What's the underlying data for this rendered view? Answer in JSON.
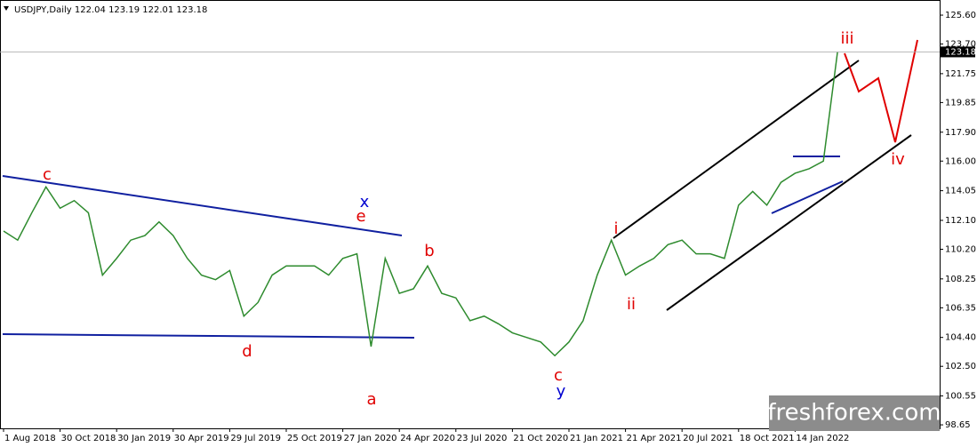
{
  "chart_data": {
    "type": "line",
    "subtitle": "USDJPY,Daily  122.04 123.19 122.01 123.18",
    "categories": [
      "1 Aug 2018",
      null,
      null,
      null,
      "30 Oct 2018",
      null,
      null,
      null,
      "30 Jan 2019",
      null,
      null,
      null,
      "30 Apr 2019",
      null,
      null,
      null,
      "29 Jul 2019",
      null,
      null,
      null,
      "25 Oct 2019",
      null,
      null,
      null,
      "27 Jan 2020",
      null,
      null,
      null,
      "24 Apr 2020",
      null,
      null,
      null,
      "23 Jul 2020",
      null,
      null,
      null,
      "21 Oct 2020",
      null,
      null,
      null,
      "21 Jan 2021",
      null,
      null,
      null,
      "21 Apr 2021",
      null,
      null,
      null,
      "20 Jul 2021",
      null,
      null,
      null,
      "18 Oct 2021",
      null,
      null,
      null,
      "14 Jan 2022",
      null,
      null,
      null
    ],
    "series": [
      {
        "name": "USDJPY",
        "color": "#2e8b2e",
        "values": [
          111.4,
          110.8,
          112.6,
          114.3,
          112.9,
          113.4,
          112.6,
          108.5,
          109.6,
          110.8,
          111.1,
          112.0,
          111.1,
          109.6,
          108.5,
          108.2,
          108.8,
          105.8,
          106.7,
          108.5,
          109.1,
          109.1,
          109.1,
          108.5,
          109.6,
          109.9,
          103.8,
          109.6,
          107.3,
          107.6,
          109.1,
          107.3,
          107.0,
          105.5,
          105.8,
          105.3,
          104.7,
          104.4,
          104.1,
          103.2,
          104.1,
          105.5,
          108.5,
          110.8,
          108.5,
          109.1,
          109.6,
          110.5,
          110.8,
          109.9,
          109.9,
          109.6,
          113.1,
          114.0,
          113.1,
          114.6,
          115.2,
          115.5,
          116.0,
          123.18
        ]
      }
    ],
    "current_price": {
      "value": 123.18,
      "label": "123.18"
    },
    "ylim": [
      98.42,
      126.42
    ],
    "yticks": [
      {
        "value": 125.6,
        "label": "125.60"
      },
      {
        "value": 123.7,
        "label": "123.70"
      },
      121.75,
      119.85,
      {
        "value": 117.9,
        "label": "117.90"
      },
      {
        "value": 116,
        "label": "116.00"
      },
      114.05,
      {
        "value": 112.1,
        "label": "112.10"
      },
      {
        "value": 110.2,
        "label": "110.20"
      },
      108.25,
      106.35,
      {
        "value": 104.4,
        "label": "104.40"
      },
      {
        "value": 102.5,
        "label": "102.50"
      },
      100.55,
      98.65
    ],
    "annotations": [
      {
        "text": "c",
        "color": "#e00000"
      },
      {
        "text": "x",
        "color": "#0000d0"
      },
      {
        "text": "e",
        "color": "#e00000"
      },
      {
        "text": "b",
        "color": "#e00000"
      },
      {
        "text": "d",
        "color": "#e00000"
      },
      {
        "text": "a",
        "color": "#e00000"
      },
      {
        "text": "c",
        "color": "#e00000"
      },
      {
        "text": "y",
        "color": "#0000d0"
      },
      {
        "text": "i",
        "color": "#e00000"
      },
      {
        "text": "ii",
        "color": "#e00000"
      },
      {
        "text": "iii",
        "color": "#e00000"
      },
      {
        "text": "iv",
        "color": "#e00000"
      }
    ],
    "watermark": "freshforex.com"
  }
}
